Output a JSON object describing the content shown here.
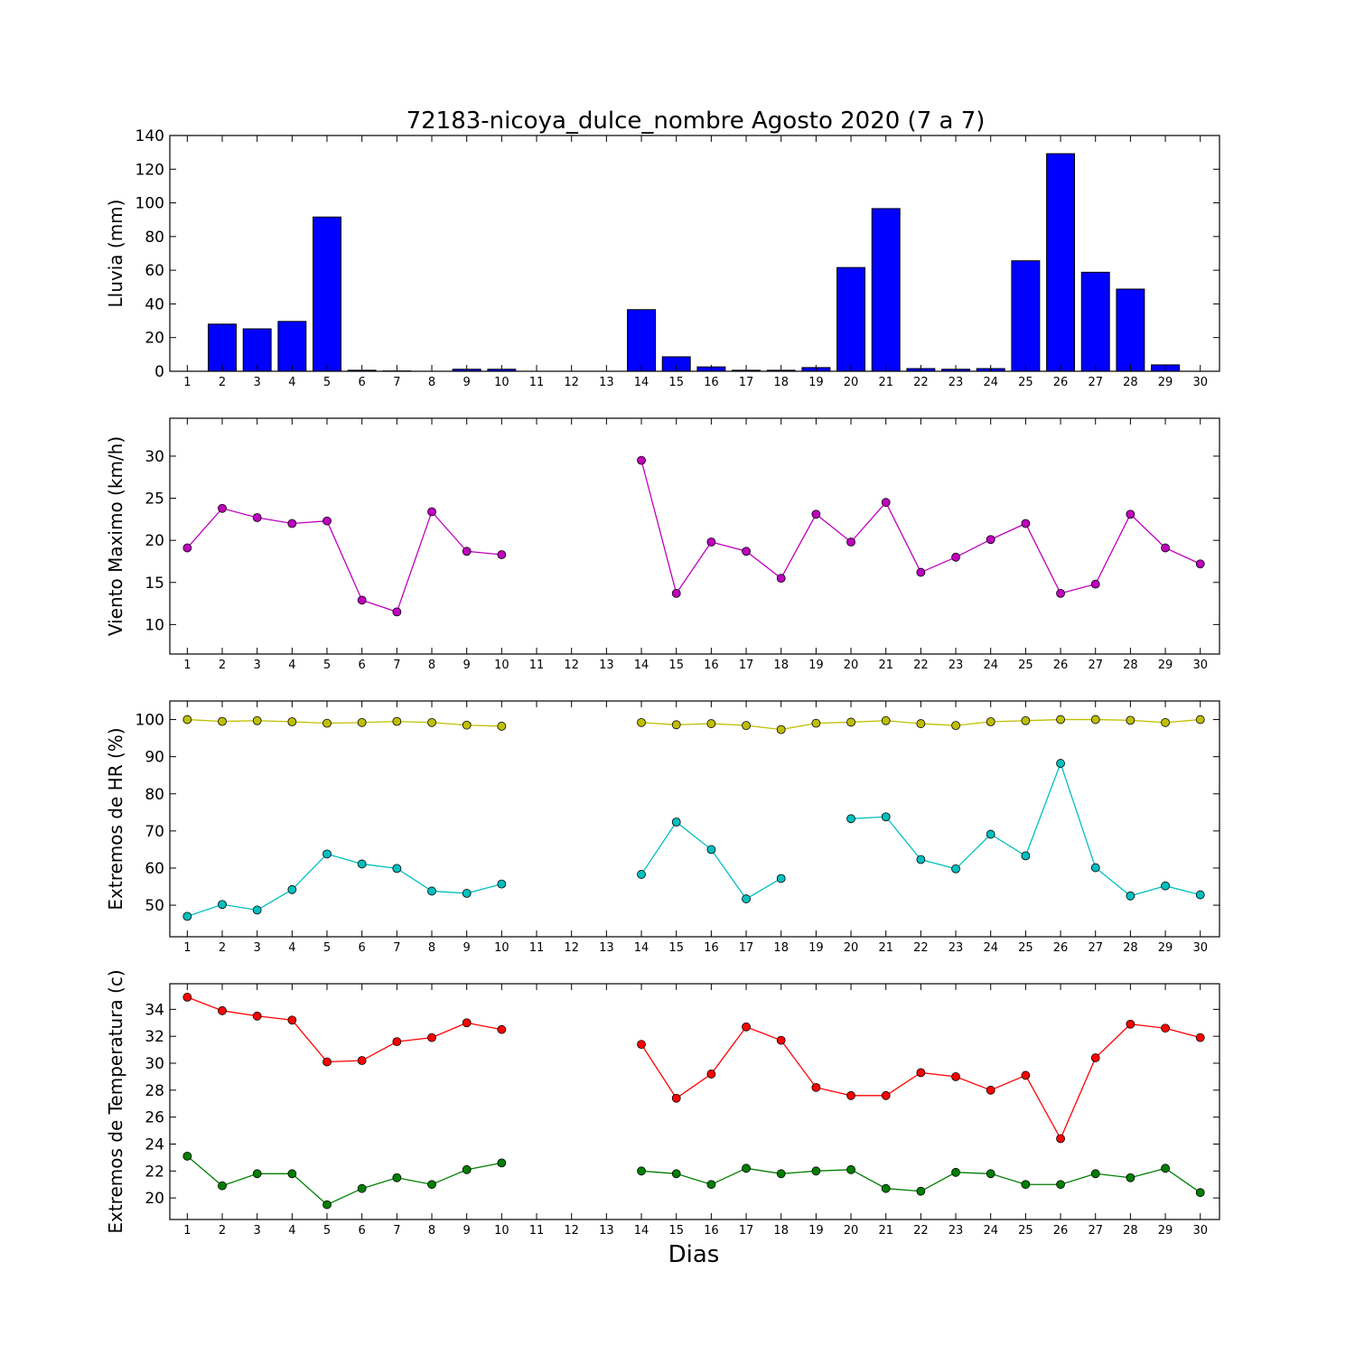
{
  "chart_data": {
    "title": "72183-nicoya_dulce_nombre Agosto 2020  (7 a 7)",
    "xlabel": "Dias",
    "days": [
      1,
      2,
      3,
      4,
      5,
      6,
      7,
      8,
      9,
      10,
      11,
      12,
      13,
      14,
      15,
      16,
      17,
      18,
      19,
      20,
      21,
      22,
      23,
      24,
      25,
      26,
      27,
      28,
      29,
      30
    ],
    "panels": [
      {
        "type": "bar",
        "ylabel": "Lluvia (mm)",
        "ylim": [
          0,
          140
        ],
        "yticks": [
          0,
          20,
          40,
          60,
          80,
          100,
          120,
          140
        ],
        "series": [
          {
            "color": "#0000ff",
            "values": [
              0,
              28,
              25.2,
              29.6,
              91.6,
              0.6,
              0.2,
              0,
              1.2,
              1.2,
              0,
              0,
              0,
              36.6,
              8.6,
              2.6,
              0.6,
              0.6,
              2.2,
              61.6,
              96.6,
              1.6,
              1.2,
              1.6,
              65.6,
              129.2,
              58.8,
              48.8,
              3.8,
              0
            ]
          }
        ]
      },
      {
        "type": "line",
        "ylabel": "Viento Maximo (km/h)",
        "ylim": [
          6.5,
          34.5
        ],
        "yticks": [
          10,
          15,
          20,
          25,
          30
        ],
        "series": [
          {
            "color": "#bf00bf",
            "values": [
              19.1,
              23.8,
              22.7,
              22.0,
              22.3,
              12.9,
              11.5,
              23.4,
              18.7,
              18.3,
              null,
              null,
              null,
              29.5,
              13.7,
              19.8,
              18.7,
              15.5,
              23.1,
              19.8,
              24.5,
              16.2,
              18.0,
              20.1,
              22.0,
              13.7,
              14.8,
              23.1,
              19.1,
              17.2
            ]
          }
        ]
      },
      {
        "type": "line",
        "ylabel": "Extremos de HR (%)",
        "ylim": [
          41.5,
          105
        ],
        "yticks": [
          50,
          60,
          70,
          80,
          90,
          100
        ],
        "series": [
          {
            "color": "#bfbf00",
            "values": [
              100,
              99.5,
              99.7,
              99.4,
              99,
              99.2,
              99.5,
              99.2,
              98.5,
              98.2,
              null,
              null,
              null,
              99.2,
              98.6,
              98.9,
              98.4,
              97.3,
              99,
              99.3,
              99.7,
              98.9,
              98.4,
              99.4,
              99.7,
              100,
              100,
              99.8,
              99.2,
              100
            ]
          },
          {
            "color": "#00bfbf",
            "values": [
              47,
              50.2,
              48.7,
              54.2,
              63.8,
              61.1,
              59.9,
              53.8,
              53.2,
              55.7,
              null,
              null,
              null,
              58.3,
              72.4,
              65.0,
              51.7,
              57.2,
              null,
              73.3,
              73.8,
              62.3,
              59.8,
              69.1,
              63.3,
              88.2,
              60.1,
              52.5,
              55.2,
              52.8
            ]
          }
        ]
      },
      {
        "type": "line",
        "ylabel": "Extremos de Temperatura (c)",
        "ylim": [
          18.4,
          35.9
        ],
        "yticks": [
          20,
          22,
          24,
          26,
          28,
          30,
          32,
          34
        ],
        "series": [
          {
            "color": "#ff0000",
            "values": [
              34.9,
              33.9,
              33.5,
              33.2,
              30.1,
              30.2,
              31.6,
              31.9,
              33.0,
              32.5,
              null,
              null,
              null,
              31.4,
              27.4,
              29.2,
              32.7,
              31.7,
              28.2,
              27.6,
              27.6,
              29.3,
              29.0,
              28.0,
              29.1,
              24.4,
              30.4,
              32.9,
              32.6,
              31.9
            ]
          },
          {
            "color": "#007f00",
            "values": [
              23.1,
              20.9,
              21.8,
              21.8,
              19.5,
              20.7,
              21.5,
              21.0,
              22.1,
              22.6,
              null,
              null,
              null,
              22.0,
              21.8,
              21.0,
              22.2,
              21.8,
              22.0,
              22.1,
              20.7,
              20.5,
              21.9,
              21.8,
              21.0,
              21.0,
              21.8,
              21.5,
              22.2,
              20.4
            ]
          }
        ]
      }
    ]
  }
}
